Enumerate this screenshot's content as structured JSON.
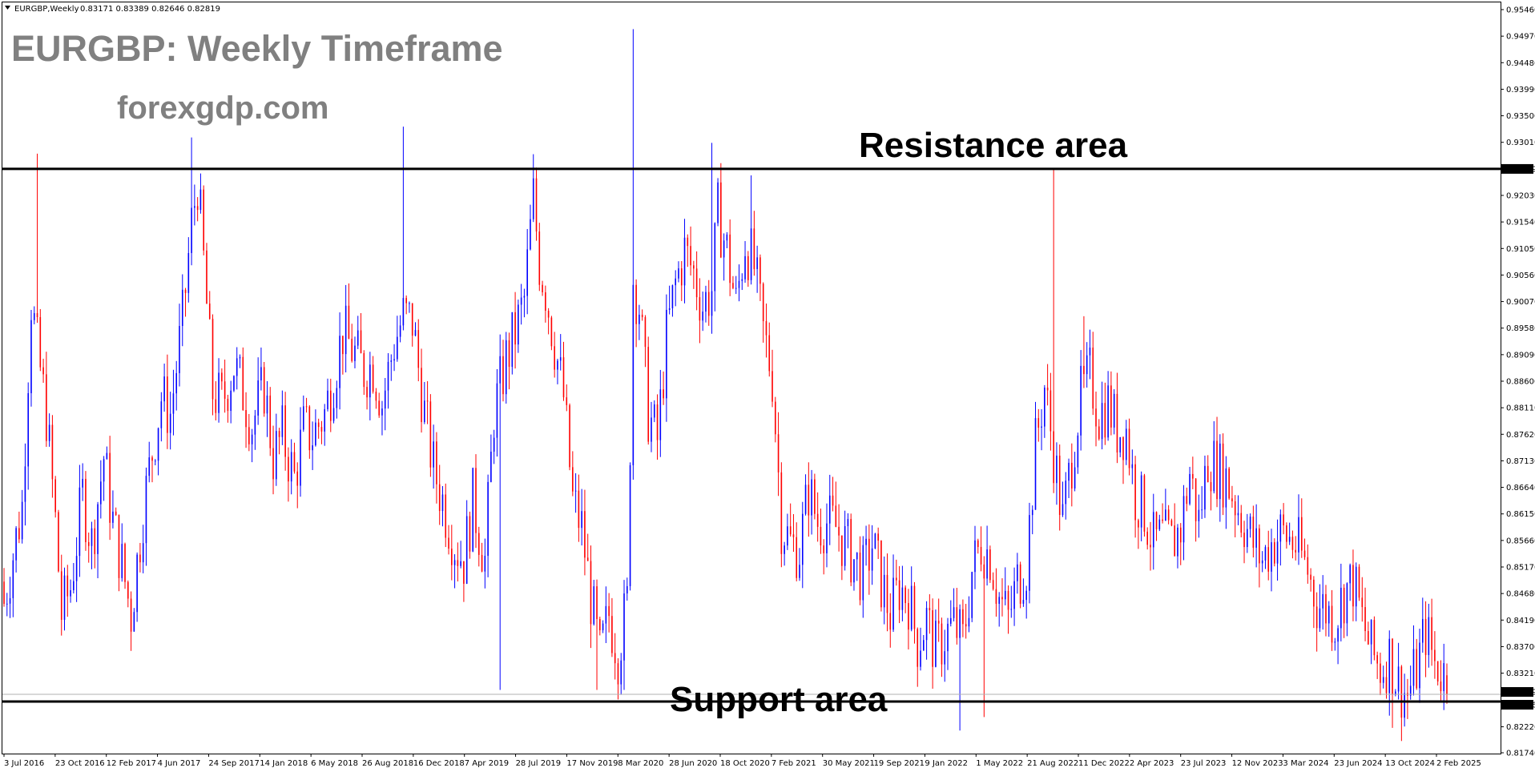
{
  "window": {
    "symbol_title": "EURGBP,Weekly",
    "ohlc_readout": "0.83171 0.83389 0.82646 0.82819"
  },
  "overlays": {
    "title": "EURGBP: Weekly Timeframe",
    "watermark": "forexgdp.com",
    "resistance_label": "Resistance area",
    "support_label": "Support area"
  },
  "colors": {
    "bull": "#0000ff",
    "bear": "#ff0000",
    "level_line": "#000000",
    "background": "#ffffff"
  },
  "chart_data": {
    "type": "candlestick",
    "timeframe": "Weekly",
    "symbol": "EURGBP",
    "ylim": [
      0.8174,
      0.9546
    ],
    "y_ticks": [
      "0.95460",
      "0.94970",
      "0.94480",
      "0.93990",
      "0.93500",
      "0.93010",
      "0.92030",
      "0.91540",
      "0.91050",
      "0.90560",
      "0.90070",
      "0.89580",
      "0.89090",
      "0.88600",
      "0.88110",
      "0.87620",
      "0.87130",
      "0.86640",
      "0.86150",
      "0.85660",
      "0.85170",
      "0.84680",
      "0.84190",
      "0.83700",
      "0.83210",
      "0.82220",
      "0.81740"
    ],
    "x_ticks": [
      "3 Jul 2016",
      "23 Oct 2016",
      "12 Feb 2017",
      "4 Jun 2017",
      "24 Sep 2017",
      "14 Jan 2018",
      "6 May 2018",
      "26 Aug 2018",
      "16 Dec 2018",
      "7 Apr 2019",
      "28 Jul 2019",
      "17 Nov 2019",
      "8 Mar 2020",
      "28 Jun 2020",
      "18 Oct 2020",
      "7 Feb 2021",
      "30 May 2021",
      "19 Sep 2021",
      "9 Jan 2022",
      "1 May 2022",
      "21 Aug 2022",
      "11 Dec 2022",
      "2 Apr 2023",
      "23 Jul 2023",
      "12 Nov 2023",
      "3 Mar 2024",
      "23 Jun 2024",
      "13 Oct 2024",
      "2 Feb 2025"
    ],
    "levels": [
      {
        "name": "resistance",
        "value": 0.92519,
        "label": "0.92519"
      },
      {
        "name": "support",
        "value": 0.82686,
        "label": "0.82686"
      }
    ],
    "current_price": {
      "value": 0.82819,
      "label": "0.82819"
    },
    "last_candle": {
      "open": 0.83171,
      "high": 0.83389,
      "low": 0.82646,
      "close": 0.82819
    },
    "close_path": [
      [
        0,
        0.845
      ],
      [
        6,
        0.863
      ],
      [
        9,
        0.901
      ],
      [
        11,
        0.892
      ],
      [
        14,
        0.88
      ],
      [
        17,
        0.86
      ],
      [
        19,
        0.843
      ],
      [
        22,
        0.848
      ],
      [
        26,
        0.865
      ],
      [
        29,
        0.856
      ],
      [
        33,
        0.872
      ],
      [
        36,
        0.86
      ],
      [
        39,
        0.852
      ],
      [
        42,
        0.843
      ],
      [
        46,
        0.862
      ],
      [
        49,
        0.873
      ],
      [
        52,
        0.883
      ],
      [
        55,
        0.88
      ],
      [
        59,
        0.897
      ],
      [
        62,
        0.915
      ],
      [
        64,
        0.923
      ],
      [
        66,
        0.908
      ],
      [
        69,
        0.884
      ],
      [
        72,
        0.882
      ],
      [
        76,
        0.889
      ],
      [
        79,
        0.884
      ],
      [
        82,
        0.878
      ],
      [
        86,
        0.885
      ],
      [
        89,
        0.872
      ],
      [
        92,
        0.876
      ],
      [
        96,
        0.868
      ],
      [
        99,
        0.877
      ],
      [
        102,
        0.876
      ],
      [
        106,
        0.88
      ],
      [
        109,
        0.887
      ],
      [
        112,
        0.895
      ],
      [
        115,
        0.892
      ],
      [
        119,
        0.888
      ],
      [
        122,
        0.889
      ],
      [
        125,
        0.882
      ],
      [
        129,
        0.893
      ],
      [
        132,
        0.898
      ],
      [
        135,
        0.897
      ],
      [
        139,
        0.88
      ],
      [
        142,
        0.87
      ],
      [
        145,
        0.864
      ],
      [
        149,
        0.856
      ],
      [
        152,
        0.853
      ],
      [
        155,
        0.864
      ],
      [
        159,
        0.853
      ],
      [
        162,
        0.88
      ],
      [
        166,
        0.89
      ],
      [
        169,
        0.895
      ],
      [
        172,
        0.901
      ],
      [
        175,
        0.92
      ],
      [
        177,
        0.908
      ],
      [
        179,
        0.903
      ],
      [
        182,
        0.893
      ],
      [
        185,
        0.883
      ],
      [
        188,
        0.864
      ],
      [
        191,
        0.859
      ],
      [
        194,
        0.846
      ],
      [
        197,
        0.835
      ],
      [
        200,
        0.843
      ],
      [
        203,
        0.836
      ],
      [
        206,
        0.845
      ],
      [
        208,
        0.905
      ],
      [
        210,
        0.9
      ],
      [
        213,
        0.88
      ],
      [
        216,
        0.875
      ],
      [
        219,
        0.894
      ],
      [
        222,
        0.904
      ],
      [
        225,
        0.91
      ],
      [
        228,
        0.906
      ],
      [
        231,
        0.9
      ],
      [
        234,
        0.903
      ],
      [
        236,
        0.917
      ],
      [
        239,
        0.91
      ],
      [
        242,
        0.9
      ],
      [
        245,
        0.912
      ],
      [
        248,
        0.907
      ],
      [
        251,
        0.895
      ],
      [
        254,
        0.887
      ],
      [
        257,
        0.86
      ],
      [
        260,
        0.856
      ],
      [
        263,
        0.855
      ],
      [
        266,
        0.866
      ],
      [
        269,
        0.86
      ],
      [
        272,
        0.86
      ],
      [
        275,
        0.859
      ],
      [
        278,
        0.856
      ],
      [
        281,
        0.853
      ],
      [
        284,
        0.85
      ],
      [
        287,
        0.856
      ],
      [
        290,
        0.849
      ],
      [
        293,
        0.843
      ],
      [
        296,
        0.848
      ],
      [
        299,
        0.846
      ],
      [
        302,
        0.838
      ],
      [
        305,
        0.842
      ],
      [
        308,
        0.836
      ],
      [
        311,
        0.839
      ],
      [
        314,
        0.841
      ],
      [
        317,
        0.838
      ],
      [
        320,
        0.851
      ],
      [
        323,
        0.856
      ],
      [
        326,
        0.854
      ],
      [
        329,
        0.846
      ],
      [
        332,
        0.842
      ],
      [
        335,
        0.849
      ],
      [
        338,
        0.852
      ],
      [
        341,
        0.874
      ],
      [
        344,
        0.885
      ],
      [
        347,
        0.873
      ],
      [
        350,
        0.86
      ],
      [
        353,
        0.872
      ],
      [
        356,
        0.883
      ],
      [
        359,
        0.887
      ],
      [
        362,
        0.88
      ],
      [
        365,
        0.882
      ],
      [
        368,
        0.877
      ],
      [
        371,
        0.877
      ],
      [
        374,
        0.865
      ],
      [
        377,
        0.862
      ],
      [
        380,
        0.856
      ],
      [
        383,
        0.857
      ],
      [
        386,
        0.856
      ],
      [
        389,
        0.859
      ],
      [
        392,
        0.869
      ],
      [
        395,
        0.86
      ],
      [
        398,
        0.872
      ],
      [
        401,
        0.87
      ],
      [
        404,
        0.868
      ],
      [
        407,
        0.864
      ],
      [
        410,
        0.86
      ],
      [
        413,
        0.856
      ],
      [
        416,
        0.853
      ],
      [
        419,
        0.856
      ],
      [
        422,
        0.858
      ],
      [
        425,
        0.857
      ],
      [
        428,
        0.855
      ],
      [
        431,
        0.851
      ],
      [
        434,
        0.845
      ],
      [
        437,
        0.844
      ],
      [
        440,
        0.842
      ],
      [
        443,
        0.847
      ],
      [
        446,
        0.849
      ],
      [
        449,
        0.842
      ],
      [
        452,
        0.836
      ],
      [
        455,
        0.833
      ],
      [
        458,
        0.835
      ],
      [
        461,
        0.83
      ],
      [
        464,
        0.828
      ],
      [
        467,
        0.833
      ],
      [
        470,
        0.84
      ],
      [
        473,
        0.834
      ],
      [
        476,
        0.832
      ],
      [
        477,
        0.8282
      ]
    ],
    "spikes": [
      {
        "at": 11,
        "high": 0.928
      },
      {
        "at": 62,
        "high": 0.931
      },
      {
        "at": 132,
        "high": 0.933
      },
      {
        "at": 164,
        "low": 0.829
      },
      {
        "at": 196,
        "low": 0.829
      },
      {
        "at": 205,
        "low": 0.829
      },
      {
        "at": 208,
        "high": 0.951
      },
      {
        "at": 234,
        "high": 0.93
      },
      {
        "at": 247,
        "high": 0.924
      },
      {
        "at": 316,
        "low": 0.8215
      },
      {
        "at": 324,
        "low": 0.824
      },
      {
        "at": 347,
        "high": 0.9252
      },
      {
        "at": 357,
        "high": 0.898
      },
      {
        "at": 459,
        "low": 0.822
      }
    ]
  }
}
